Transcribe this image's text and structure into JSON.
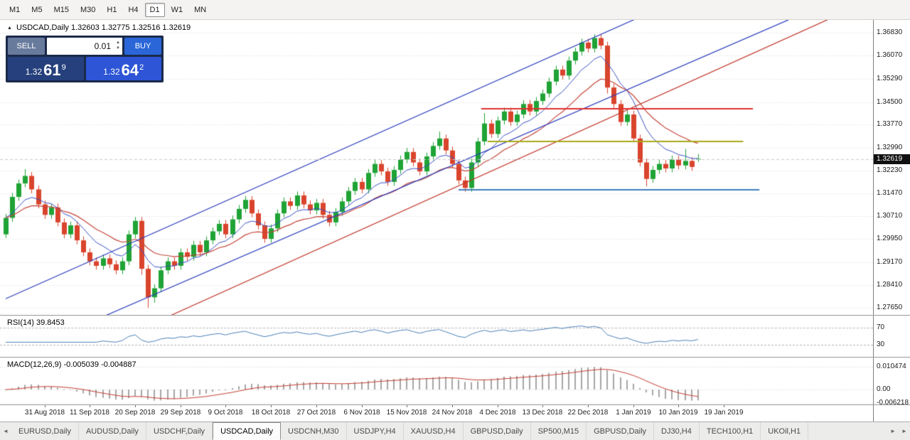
{
  "toolbar": {
    "timeframes": [
      "M1",
      "M5",
      "M15",
      "M30",
      "H1",
      "H4",
      "D1",
      "W1",
      "MN"
    ],
    "active_timeframe": "D1"
  },
  "icons": {
    "spinner_up": "▲",
    "spinner_down": "▼"
  },
  "chart_header": {
    "shift_marker": "▲",
    "title": "USDCAD,Daily 1.32603 1.32775 1.32516 1.32619"
  },
  "trade_panel": {
    "sell_label": "SELL",
    "buy_label": "BUY",
    "volume": "0.01",
    "sell_price": {
      "base": "1.32",
      "pips": "61",
      "sup": "9"
    },
    "buy_price": {
      "base": "1.32",
      "pips": "64",
      "sup": "2"
    }
  },
  "price_axis": {
    "labels": [
      "1.36830",
      "1.36070",
      "1.35290",
      "1.34500",
      "1.33770",
      "1.32990",
      "1.32230",
      "1.31470",
      "1.30710",
      "1.29950",
      "1.29170",
      "1.28410",
      "1.27650"
    ],
    "current_price": "1.32619"
  },
  "rsi_panel": {
    "label": "RSI(14) 39.8453",
    "levels": [
      {
        "text": "70",
        "value": 70
      },
      {
        "text": "30",
        "value": 30
      }
    ]
  },
  "macd_panel": {
    "label": "MACD(12,26,9) -0.005039 -0.004887",
    "axis_labels": [
      {
        "text": "0.010474",
        "value": 0.010474
      },
      {
        "text": "0.00",
        "value": 0
      },
      {
        "text": "-0.006218",
        "value": -0.006218
      }
    ]
  },
  "date_axis": {
    "labels": [
      "31 Aug 2018",
      "11 Sep 2018",
      "20 Sep 2018",
      "29 Sep 2018",
      "9 Oct 2018",
      "18 Oct 2018",
      "27 Oct 2018",
      "6 Nov 2018",
      "15 Nov 2018",
      "24 Nov 2018",
      "4 Dec 2018",
      "13 Dec 2018",
      "22 Dec 2018",
      "1 Jan 2019",
      "10 Jan 2019",
      "19 Jan 2019"
    ],
    "first_label_bar": 6,
    "label_every_bars": 7
  },
  "tab_bar": {
    "left_arrow": "◄",
    "right_arrow": "►",
    "active_tab": "USDCAD,Daily",
    "tabs": [
      "EURUSD,Daily",
      "AUDUSD,Daily",
      "USDCHF,Daily",
      "USDCAD,Daily",
      "USDCNH,M30",
      "USDJPY,H4",
      "XAUUSD,H4",
      "GBPUSD,Daily",
      "SP500,M15",
      "GBPUSD,Daily",
      "DJ30,H4",
      "TECH100,H1",
      "UKOil,H1"
    ]
  },
  "chart_data": {
    "type": "candlestick",
    "symbol": "USDCAD",
    "timeframe": "Daily",
    "ylim": [
      1.27412,
      1.37257
    ],
    "current_price": 1.32619,
    "ma_fast_period": 8,
    "ma_slow_period": 17,
    "colors": {
      "up": "#1fa335",
      "down": "#d9442c",
      "ma_fast": "#3a4fc4",
      "ma_slow": "#c4453a",
      "rsi": "#4a7fb5",
      "rsi_level": "#b5b5b5",
      "macd_hist": "#a6a6a6",
      "macd_signal": "#c23b2e",
      "grid": "#dcdcdc",
      "bid_line": "#c9c9c9"
    },
    "trendlines": [
      {
        "color": "#2b3dbb",
        "p1": [
          0,
          1.2795
        ],
        "p2": [
          98,
          1.3735
        ]
      },
      {
        "color": "#2b3dbb",
        "p1": [
          7,
          1.266
        ],
        "p2": [
          121,
          1.3726
        ]
      },
      {
        "color": "#c0392b",
        "p1": [
          23,
          1.2715
        ],
        "p2": [
          127,
          1.3726
        ]
      }
    ],
    "hlines": [
      {
        "color": "#e03131",
        "price": 1.343,
        "bar_start": 73.5,
        "bar_end": 115.5
      },
      {
        "color": "#a8a818",
        "price": 1.332,
        "bar_start": 74.5,
        "bar_end": 114
      },
      {
        "color": "#3f7fbf",
        "price": 1.3158,
        "bar_start": 70,
        "bar_end": 116.5
      }
    ],
    "ohlc": [
      [
        1.301,
        1.3078,
        1.2998,
        1.3065
      ],
      [
        1.3065,
        1.3148,
        1.3052,
        1.3135
      ],
      [
        1.3135,
        1.3193,
        1.3122,
        1.318
      ],
      [
        1.318,
        1.3228,
        1.3167,
        1.3205
      ],
      [
        1.3205,
        1.3218,
        1.3147,
        1.316
      ],
      [
        1.316,
        1.3173,
        1.3097,
        1.311
      ],
      [
        1.311,
        1.3123,
        1.3062,
        1.3075
      ],
      [
        1.3075,
        1.3113,
        1.3062,
        1.31
      ],
      [
        1.31,
        1.3113,
        1.3037,
        1.305
      ],
      [
        1.305,
        1.3063,
        1.2997,
        1.301
      ],
      [
        1.301,
        1.3053,
        1.2997,
        1.304
      ],
      [
        1.304,
        1.3053,
        1.2977,
        1.299
      ],
      [
        1.299,
        1.3003,
        1.2937,
        1.295
      ],
      [
        1.295,
        1.2963,
        1.2907,
        1.292
      ],
      [
        1.292,
        1.2933,
        1.2892,
        1.2905
      ],
      [
        1.2905,
        1.2943,
        1.2892,
        1.293
      ],
      [
        1.293,
        1.2943,
        1.2897,
        1.291
      ],
      [
        1.291,
        1.2923,
        1.2877,
        1.289
      ],
      [
        1.289,
        1.2933,
        1.2877,
        1.292
      ],
      [
        1.292,
        1.3023,
        1.2907,
        1.301
      ],
      [
        1.301,
        1.3068,
        1.2997,
        1.3055
      ],
      [
        1.3055,
        1.3068,
        1.2875,
        1.2895
      ],
      [
        1.2895,
        1.2908,
        1.2765,
        1.28
      ],
      [
        1.28,
        1.2843,
        1.2782,
        1.283
      ],
      [
        1.283,
        1.2903,
        1.2817,
        1.289
      ],
      [
        1.289,
        1.2933,
        1.2877,
        1.292
      ],
      [
        1.292,
        1.2933,
        1.2892,
        1.2905
      ],
      [
        1.2905,
        1.2963,
        1.2892,
        1.295
      ],
      [
        1.295,
        1.2963,
        1.2922,
        1.2935
      ],
      [
        1.2935,
        1.2988,
        1.2922,
        1.2975
      ],
      [
        1.2975,
        1.2988,
        1.2937,
        1.295
      ],
      [
        1.295,
        1.3003,
        1.2937,
        1.299
      ],
      [
        1.299,
        1.3033,
        1.2977,
        1.302
      ],
      [
        1.302,
        1.3058,
        1.3007,
        1.3045
      ],
      [
        1.3045,
        1.3058,
        1.2997,
        1.301
      ],
      [
        1.301,
        1.3073,
        1.2997,
        1.306
      ],
      [
        1.306,
        1.3108,
        1.3047,
        1.3095
      ],
      [
        1.3095,
        1.3138,
        1.3082,
        1.3125
      ],
      [
        1.3125,
        1.3138,
        1.3067,
        1.308
      ],
      [
        1.308,
        1.3093,
        1.3027,
        1.304
      ],
      [
        1.304,
        1.3053,
        1.2982,
        1.2995
      ],
      [
        1.2995,
        1.3043,
        1.2982,
        1.303
      ],
      [
        1.303,
        1.3093,
        1.3017,
        1.308
      ],
      [
        1.308,
        1.3133,
        1.3067,
        1.312
      ],
      [
        1.312,
        1.3133,
        1.3092,
        1.3105
      ],
      [
        1.3105,
        1.3153,
        1.3092,
        1.314
      ],
      [
        1.314,
        1.3153,
        1.3097,
        1.311
      ],
      [
        1.311,
        1.3123,
        1.3077,
        1.309
      ],
      [
        1.309,
        1.3128,
        1.3077,
        1.3115
      ],
      [
        1.3115,
        1.3128,
        1.3062,
        1.3075
      ],
      [
        1.3075,
        1.3088,
        1.3037,
        1.305
      ],
      [
        1.305,
        1.3098,
        1.3037,
        1.3085
      ],
      [
        1.3085,
        1.3133,
        1.3072,
        1.312
      ],
      [
        1.312,
        1.3168,
        1.3107,
        1.3155
      ],
      [
        1.3155,
        1.3198,
        1.3142,
        1.3185
      ],
      [
        1.3185,
        1.3198,
        1.3147,
        1.316
      ],
      [
        1.316,
        1.3228,
        1.3147,
        1.3215
      ],
      [
        1.3215,
        1.3258,
        1.3202,
        1.3245
      ],
      [
        1.3245,
        1.3258,
        1.3207,
        1.322
      ],
      [
        1.322,
        1.3233,
        1.3172,
        1.3185
      ],
      [
        1.3185,
        1.3238,
        1.3172,
        1.3225
      ],
      [
        1.3225,
        1.3273,
        1.3212,
        1.326
      ],
      [
        1.326,
        1.3298,
        1.3247,
        1.3285
      ],
      [
        1.3285,
        1.3298,
        1.3237,
        1.325
      ],
      [
        1.325,
        1.3263,
        1.3207,
        1.322
      ],
      [
        1.322,
        1.3283,
        1.3207,
        1.327
      ],
      [
        1.327,
        1.3318,
        1.3257,
        1.3305
      ],
      [
        1.3305,
        1.3353,
        1.3292,
        1.333
      ],
      [
        1.333,
        1.3343,
        1.3277,
        1.329
      ],
      [
        1.329,
        1.3303,
        1.3232,
        1.3245
      ],
      [
        1.3245,
        1.3258,
        1.3177,
        1.319
      ],
      [
        1.319,
        1.3203,
        1.3152,
        1.3165
      ],
      [
        1.3165,
        1.3263,
        1.3152,
        1.325
      ],
      [
        1.325,
        1.3333,
        1.3237,
        1.332
      ],
      [
        1.332,
        1.3415,
        1.3307,
        1.338
      ],
      [
        1.338,
        1.3393,
        1.3332,
        1.3345
      ],
      [
        1.3345,
        1.3403,
        1.3332,
        1.339
      ],
      [
        1.339,
        1.3433,
        1.3377,
        1.342
      ],
      [
        1.342,
        1.3433,
        1.3372,
        1.3385
      ],
      [
        1.3385,
        1.3423,
        1.3372,
        1.341
      ],
      [
        1.341,
        1.3458,
        1.3397,
        1.3445
      ],
      [
        1.3445,
        1.3458,
        1.3407,
        1.342
      ],
      [
        1.342,
        1.3468,
        1.3407,
        1.3455
      ],
      [
        1.3455,
        1.3493,
        1.3442,
        1.348
      ],
      [
        1.348,
        1.3533,
        1.3467,
        1.352
      ],
      [
        1.352,
        1.3573,
        1.3507,
        1.356
      ],
      [
        1.356,
        1.3573,
        1.3527,
        1.354
      ],
      [
        1.354,
        1.3603,
        1.3527,
        1.359
      ],
      [
        1.359,
        1.3633,
        1.3577,
        1.362
      ],
      [
        1.362,
        1.3663,
        1.3607,
        1.365
      ],
      [
        1.365,
        1.3663,
        1.3617,
        1.363
      ],
      [
        1.363,
        1.3678,
        1.3617,
        1.3665
      ],
      [
        1.3665,
        1.3678,
        1.3627,
        1.364
      ],
      [
        1.364,
        1.3653,
        1.348,
        1.35
      ],
      [
        1.35,
        1.3513,
        1.3432,
        1.3445
      ],
      [
        1.3445,
        1.3458,
        1.3372,
        1.3385
      ],
      [
        1.3385,
        1.3423,
        1.3372,
        1.341
      ],
      [
        1.341,
        1.3423,
        1.3317,
        1.333
      ],
      [
        1.333,
        1.3343,
        1.3237,
        1.325
      ],
      [
        1.325,
        1.3263,
        1.317,
        1.3195
      ],
      [
        1.3195,
        1.3238,
        1.3182,
        1.3225
      ],
      [
        1.3225,
        1.3258,
        1.3212,
        1.3245
      ],
      [
        1.3245,
        1.3258,
        1.3217,
        1.323
      ],
      [
        1.323,
        1.3273,
        1.3217,
        1.326
      ],
      [
        1.326,
        1.3273,
        1.3227,
        1.324
      ],
      [
        1.324,
        1.3295,
        1.3227,
        1.3255
      ],
      [
        1.3255,
        1.3268,
        1.3222,
        1.3235
      ],
      [
        1.326,
        1.3278,
        1.3252,
        1.3262
      ]
    ]
  }
}
